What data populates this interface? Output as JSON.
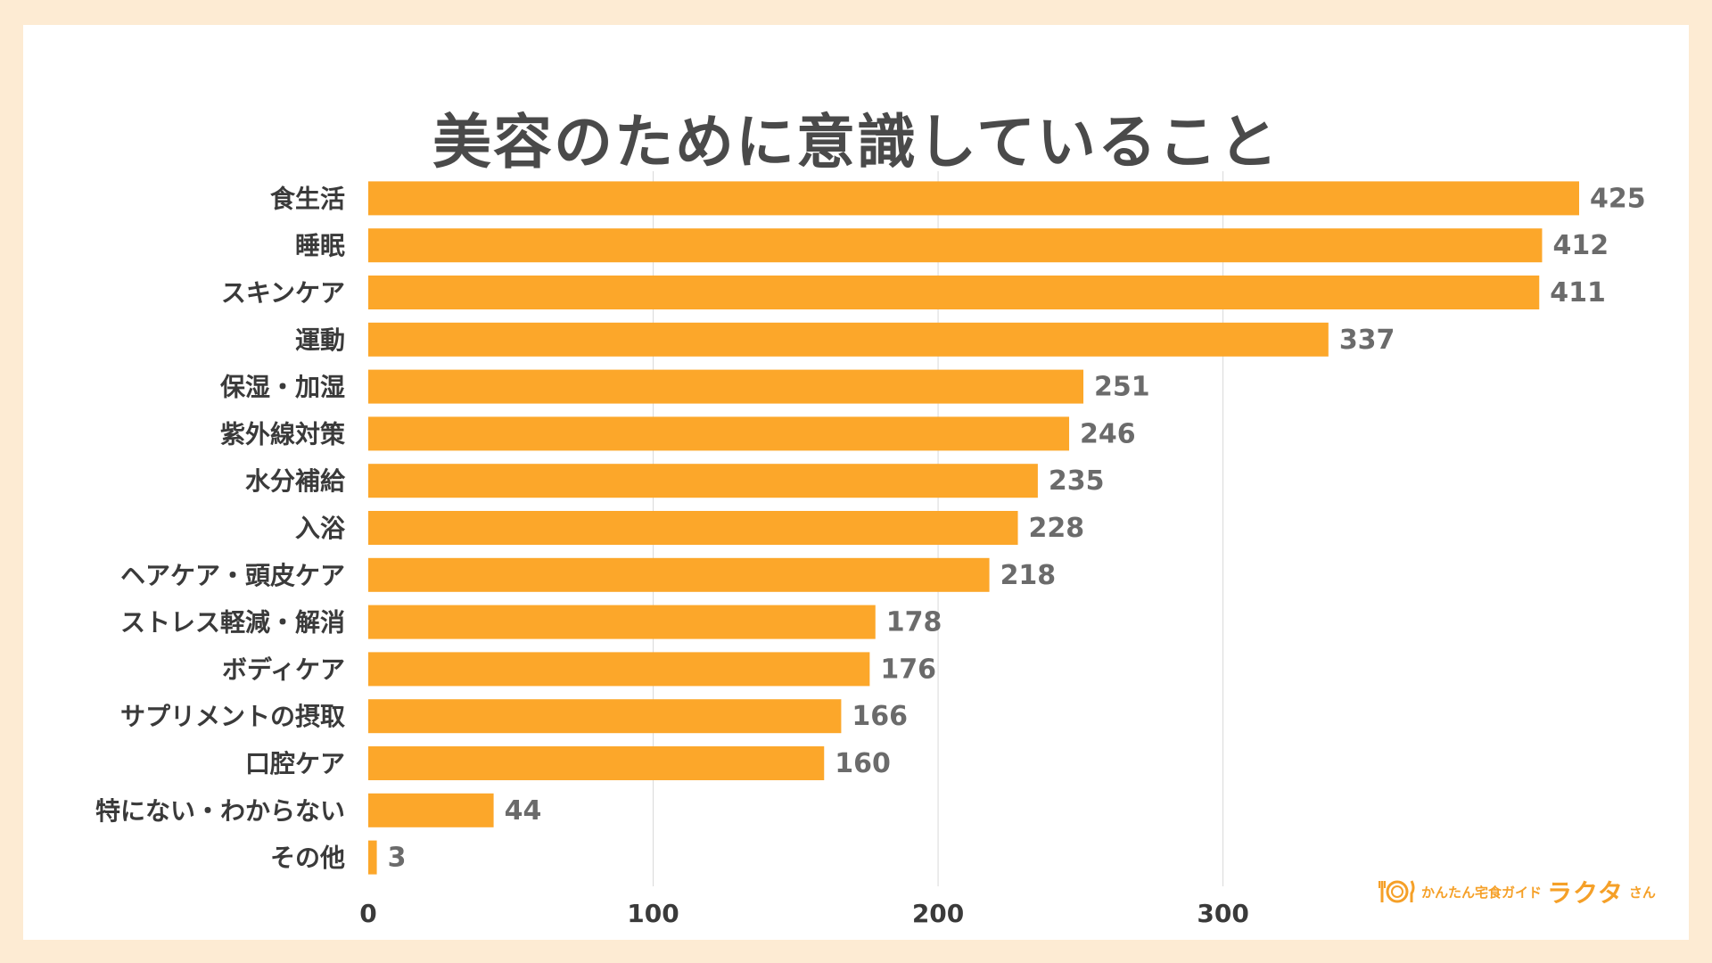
{
  "chart_data": {
    "type": "bar",
    "orientation": "horizontal",
    "title": "美容のために意識していること",
    "categories": [
      "食生活",
      "睡眠",
      "スキンケア",
      "運動",
      "保湿・加湿",
      "紫外線対策",
      "水分補給",
      "入浴",
      "ヘアケア・頭皮ケア",
      "ストレス軽減・解消",
      "ボディケア",
      "サプリメントの摂取",
      "口腔ケア",
      "特にない・わからない",
      "その他"
    ],
    "values": [
      425,
      412,
      411,
      337,
      251,
      246,
      235,
      228,
      218,
      178,
      176,
      166,
      160,
      44,
      3
    ],
    "xlim": [
      0,
      425
    ],
    "xticks": [
      0,
      100,
      200,
      300
    ],
    "grid": true,
    "legend": "none",
    "colors": {
      "bar": "#fca72a",
      "value_label": "#6b6b6b",
      "category_label": "#3a3a3a",
      "tick_label": "#3a3a3a",
      "gridline": "#d9d9d9",
      "background": "#fdebd3",
      "title": "#4a4a4a",
      "logo": "#f5a028"
    }
  },
  "logo": {
    "icon": "plate-fork-knife-icon",
    "tagline": "かんたん宅食ガイド",
    "name": "ラクタ",
    "suffix": "さん"
  }
}
